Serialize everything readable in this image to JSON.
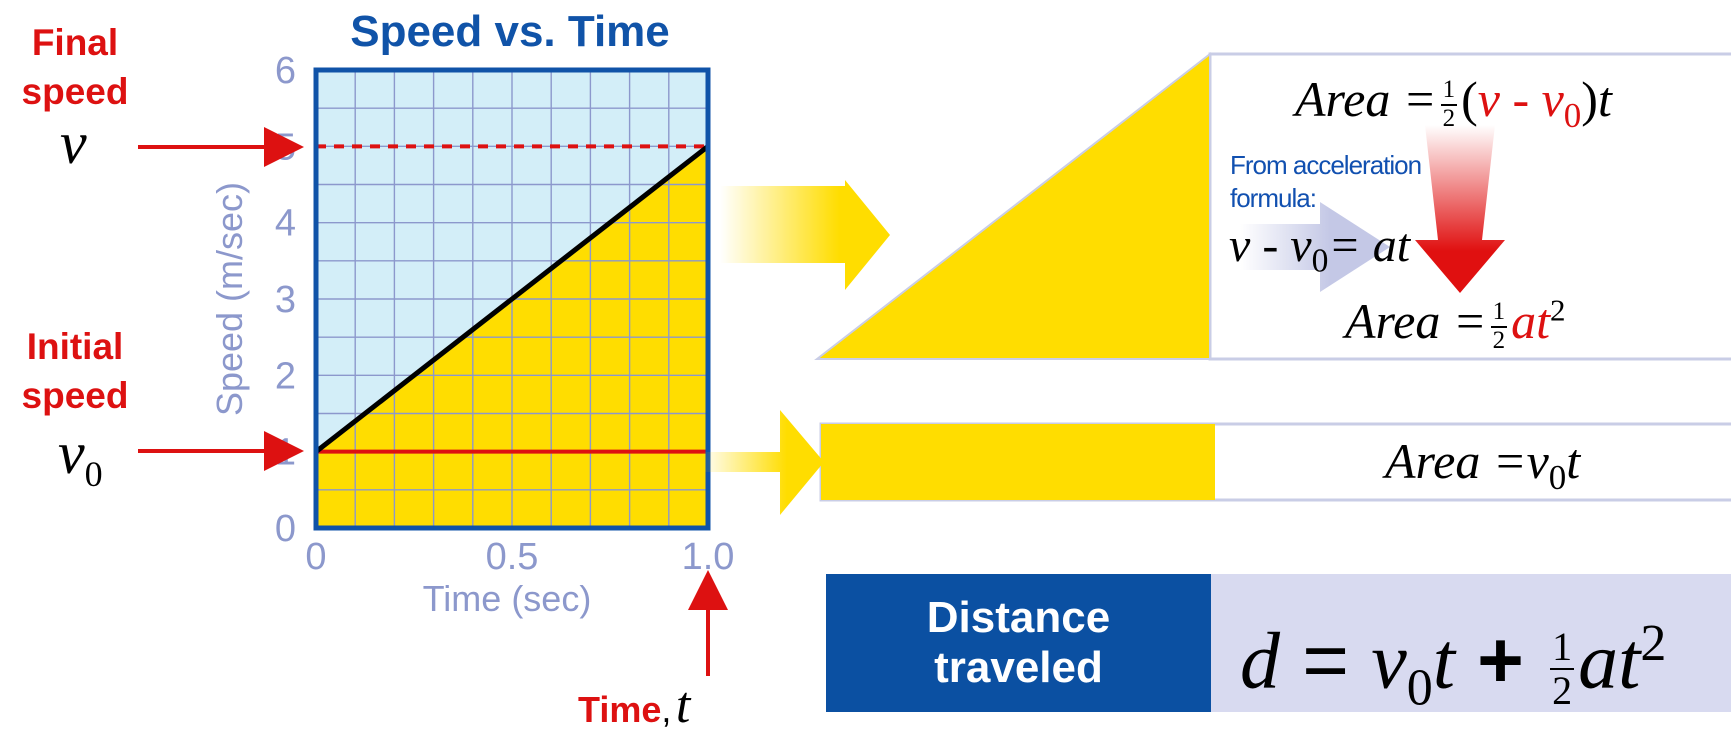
{
  "chart_data": {
    "type": "line",
    "title": "Speed vs. Time",
    "xlabel": "Time (sec)",
    "ylabel": "Speed (m/sec)",
    "xlim": [
      0,
      1.0
    ],
    "ylim": [
      0,
      6
    ],
    "x_ticks": [
      "0",
      "0.5",
      "1.0"
    ],
    "y_ticks": [
      "0",
      "1",
      "2",
      "3",
      "4",
      "5",
      "6"
    ],
    "grid": true,
    "series": [
      {
        "x": [
          0,
          1.0
        ],
        "y": [
          1,
          5
        ]
      }
    ],
    "reference_lines": [
      {
        "y": 5,
        "style": "dashed"
      },
      {
        "y": 1,
        "style": "solid"
      }
    ],
    "colors": {
      "plot_bg": "#d3eef8",
      "area_fill": "#ffdd00",
      "axis": "#1053a8",
      "line": "#000000",
      "accent": "#dd1111",
      "tick_text": "#8c98cc"
    }
  },
  "annotations": {
    "final_speed": {
      "line1": "Final",
      "line2": "speed",
      "symbol": "v"
    },
    "initial_speed": {
      "line1": "Initial",
      "line2": "speed",
      "symbol": "v",
      "subscript": "0"
    },
    "time": {
      "label": "Time",
      "comma": ",",
      "symbol": "t"
    }
  },
  "triangle_panel": {
    "area_top": {
      "lhs": "Area =",
      "frac_num": "1",
      "frac_den": "2",
      "open_paren": "(",
      "v": "v",
      "minus": "-",
      "v0": "v",
      "v0_sub": "0",
      "close_paren": ")",
      "t": "t"
    },
    "from_note": {
      "line1": "From acceleration",
      "line2": "formula:"
    },
    "accel_eq": {
      "v": "v",
      "minus": "-",
      "v0": "v",
      "v0_sub": "0",
      "rhs": "= at"
    },
    "area_bottom": {
      "lhs": "Area =",
      "frac_num": "1",
      "frac_den": "2",
      "at": "at",
      "exp": "2"
    }
  },
  "rect_panel": {
    "area": {
      "lhs": "Area =",
      "v": "v",
      "sub": "0",
      "t": "t"
    }
  },
  "distance": {
    "label_line1": "Distance",
    "label_line2": "traveled",
    "formula": {
      "d": "d",
      "eq": "=",
      "v": "v",
      "sub": "0",
      "t": "t",
      "plus": "+",
      "frac_num": "1",
      "frac_den": "2",
      "at": "at",
      "exp": "2"
    }
  }
}
